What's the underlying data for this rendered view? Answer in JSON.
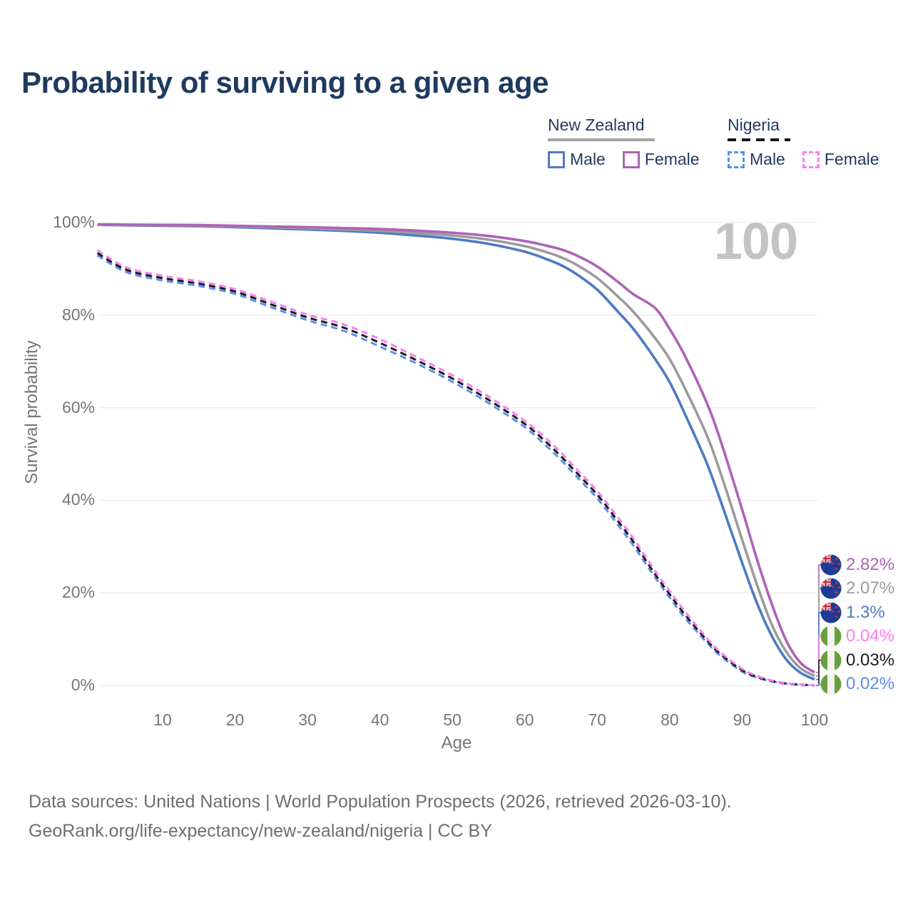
{
  "title": "Probability of surviving to a given age",
  "watermark_age": "100",
  "legend": {
    "new_zealand": {
      "label": "New Zealand",
      "line_style": "solid",
      "underline_color": "#a3a3a3",
      "male_label": "Male",
      "male_color": "#4e7ac4",
      "female_label": "Female",
      "female_color": "#ae63b6"
    },
    "nigeria": {
      "label": "Nigeria",
      "line_style": "dashed",
      "underline_color": "#141414",
      "male_label": "Male",
      "male_color": "#5b8cf0",
      "female_label": "Female",
      "female_color": "#fb7df0"
    }
  },
  "chart_data": {
    "type": "line",
    "title": "Probability of surviving to a given age",
    "xlabel": "Age",
    "ylabel": "Survival probability",
    "xlim": [
      1,
      100
    ],
    "ylim": [
      0,
      100
    ],
    "grid": "horizontal",
    "legend_position": "top-right",
    "x_ticks": [
      [
        10,
        "10"
      ],
      [
        20,
        "20"
      ],
      [
        30,
        "30"
      ],
      [
        40,
        "40"
      ],
      [
        50,
        "50"
      ],
      [
        60,
        "60"
      ],
      [
        70,
        "70"
      ],
      [
        80,
        "80"
      ],
      [
        90,
        "90"
      ],
      [
        100,
        "100"
      ]
    ],
    "y_ticks": [
      [
        100,
        "100%"
      ],
      [
        80,
        "80%"
      ],
      [
        60,
        "60%"
      ],
      [
        40,
        "40%"
      ],
      [
        20,
        "20%"
      ],
      [
        0,
        "0%"
      ]
    ],
    "x": [
      1,
      5,
      10,
      15,
      20,
      25,
      30,
      35,
      40,
      45,
      50,
      55,
      60,
      63,
      65,
      67,
      70,
      73,
      75,
      78,
      80,
      82,
      85,
      87,
      90,
      92,
      94,
      96,
      98,
      100
    ],
    "series": [
      {
        "name": "New Zealand — Male",
        "country": "New Zealand",
        "sex": "Male",
        "color": "#4e7ac4",
        "style": "solid",
        "end_value_label": "1.3%",
        "values": [
          99.5,
          99.4,
          99.3,
          99.2,
          99.0,
          98.75,
          98.5,
          98.2,
          97.8,
          97.2,
          96.5,
          95.4,
          93.7,
          92.1,
          90.8,
          89.0,
          85.5,
          80.5,
          77.0,
          70.5,
          65.5,
          59.0,
          48.5,
          40.0,
          26.5,
          18.0,
          11.0,
          5.8,
          2.8,
          1.3
        ]
      },
      {
        "name": "New Zealand — Both sexes",
        "country": "New Zealand",
        "sex": "Both sexes",
        "color": "#9b9b9b",
        "style": "solid",
        "end_value_label": "2.07%",
        "values": [
          99.5,
          99.45,
          99.4,
          99.3,
          99.15,
          98.95,
          98.75,
          98.5,
          98.2,
          97.75,
          97.2,
          96.3,
          94.9,
          93.6,
          92.5,
          91.0,
          88.0,
          83.8,
          80.7,
          75.0,
          70.5,
          64.5,
          54.5,
          46.0,
          31.5,
          22.0,
          13.5,
          7.5,
          3.8,
          2.07
        ]
      },
      {
        "name": "New Zealand — Female",
        "country": "New Zealand",
        "sex": "Female",
        "color": "#ae63b6",
        "style": "solid",
        "end_value_label": "2.82%",
        "values": [
          99.6,
          99.55,
          99.5,
          99.45,
          99.3,
          99.15,
          99.0,
          98.8,
          98.6,
          98.25,
          97.8,
          97.1,
          96.0,
          95.0,
          94.2,
          93.0,
          90.5,
          87.0,
          84.5,
          81.5,
          77.0,
          71.5,
          61.5,
          53.0,
          38.0,
          27.5,
          18.0,
          10.0,
          5.0,
          2.82
        ]
      },
      {
        "name": "Nigeria — Male",
        "country": "Nigeria",
        "sex": "Male",
        "color": "#5b8cf0",
        "style": "dashed",
        "end_value_label": "0.02%",
        "values": [
          92.9,
          89.3,
          87.5,
          86.3,
          84.6,
          81.7,
          78.9,
          76.6,
          73.2,
          69.6,
          65.6,
          61.0,
          55.8,
          51.7,
          48.7,
          45.4,
          40.4,
          34.4,
          30.2,
          23.3,
          19.0,
          14.8,
          9.5,
          6.4,
          3.0,
          1.7,
          0.9,
          0.4,
          0.15,
          0.02
        ]
      },
      {
        "name": "Nigeria — Both sexes",
        "country": "Nigeria",
        "sex": "Both sexes",
        "color": "#1b1b1b",
        "style": "dashed",
        "end_value_label": "0.03%",
        "values": [
          93.4,
          89.8,
          88.0,
          86.8,
          85.1,
          82.3,
          79.5,
          77.3,
          74.0,
          70.3,
          66.3,
          61.7,
          56.5,
          52.5,
          49.5,
          46.2,
          41.2,
          35.2,
          31.0,
          24.0,
          19.7,
          15.5,
          10.0,
          6.8,
          3.3,
          1.9,
          1.0,
          0.45,
          0.2,
          0.03
        ]
      },
      {
        "name": "Nigeria — Female",
        "country": "Nigeria",
        "sex": "Female",
        "color": "#fb7df0",
        "style": "dashed",
        "end_value_label": "0.04%",
        "values": [
          94.0,
          90.3,
          88.5,
          87.3,
          85.6,
          82.9,
          80.1,
          78.0,
          74.8,
          71.0,
          67.0,
          62.4,
          57.2,
          53.3,
          50.3,
          47.0,
          42.0,
          36.0,
          31.8,
          24.7,
          20.4,
          16.2,
          10.5,
          7.2,
          3.6,
          2.1,
          1.1,
          0.5,
          0.25,
          0.04
        ]
      }
    ]
  },
  "end_labels": [
    {
      "value": "2.82%",
      "color": "#ae63b6",
      "flag": "nz",
      "series_index": 2,
      "series": "New Zealand — Female"
    },
    {
      "value": "2.07%",
      "color": "#9b9b9b",
      "flag": "nz",
      "series_index": 1,
      "series": "New Zealand — Both sexes"
    },
    {
      "value": "1.3%",
      "color": "#4e7ac4",
      "flag": "nz",
      "series_index": 0,
      "series": "New Zealand — Male"
    },
    {
      "value": "0.04%",
      "color": "#fb7df0",
      "flag": "ng",
      "series_index": 5,
      "series": "Nigeria — Female"
    },
    {
      "value": "0.03%",
      "color": "#1b1b1b",
      "flag": "ng",
      "series_index": 4,
      "series": "Nigeria — Both sexes"
    },
    {
      "value": "0.02%",
      "color": "#5b8cf0",
      "flag": "ng",
      "series_index": 3,
      "series": "Nigeria — Male"
    }
  ],
  "footer": {
    "line1": "Data sources: United Nations | World Population Prospects (2026, retrieved 2026-03-10).",
    "line2": "GeoRank.org/life-expectancy/new-zealand/nigeria | CC BY"
  },
  "colors": {
    "title": "#1e3a5f",
    "axis_text": "#767676",
    "gridline": "#ebebeb",
    "watermark": "#c3c3c3"
  }
}
